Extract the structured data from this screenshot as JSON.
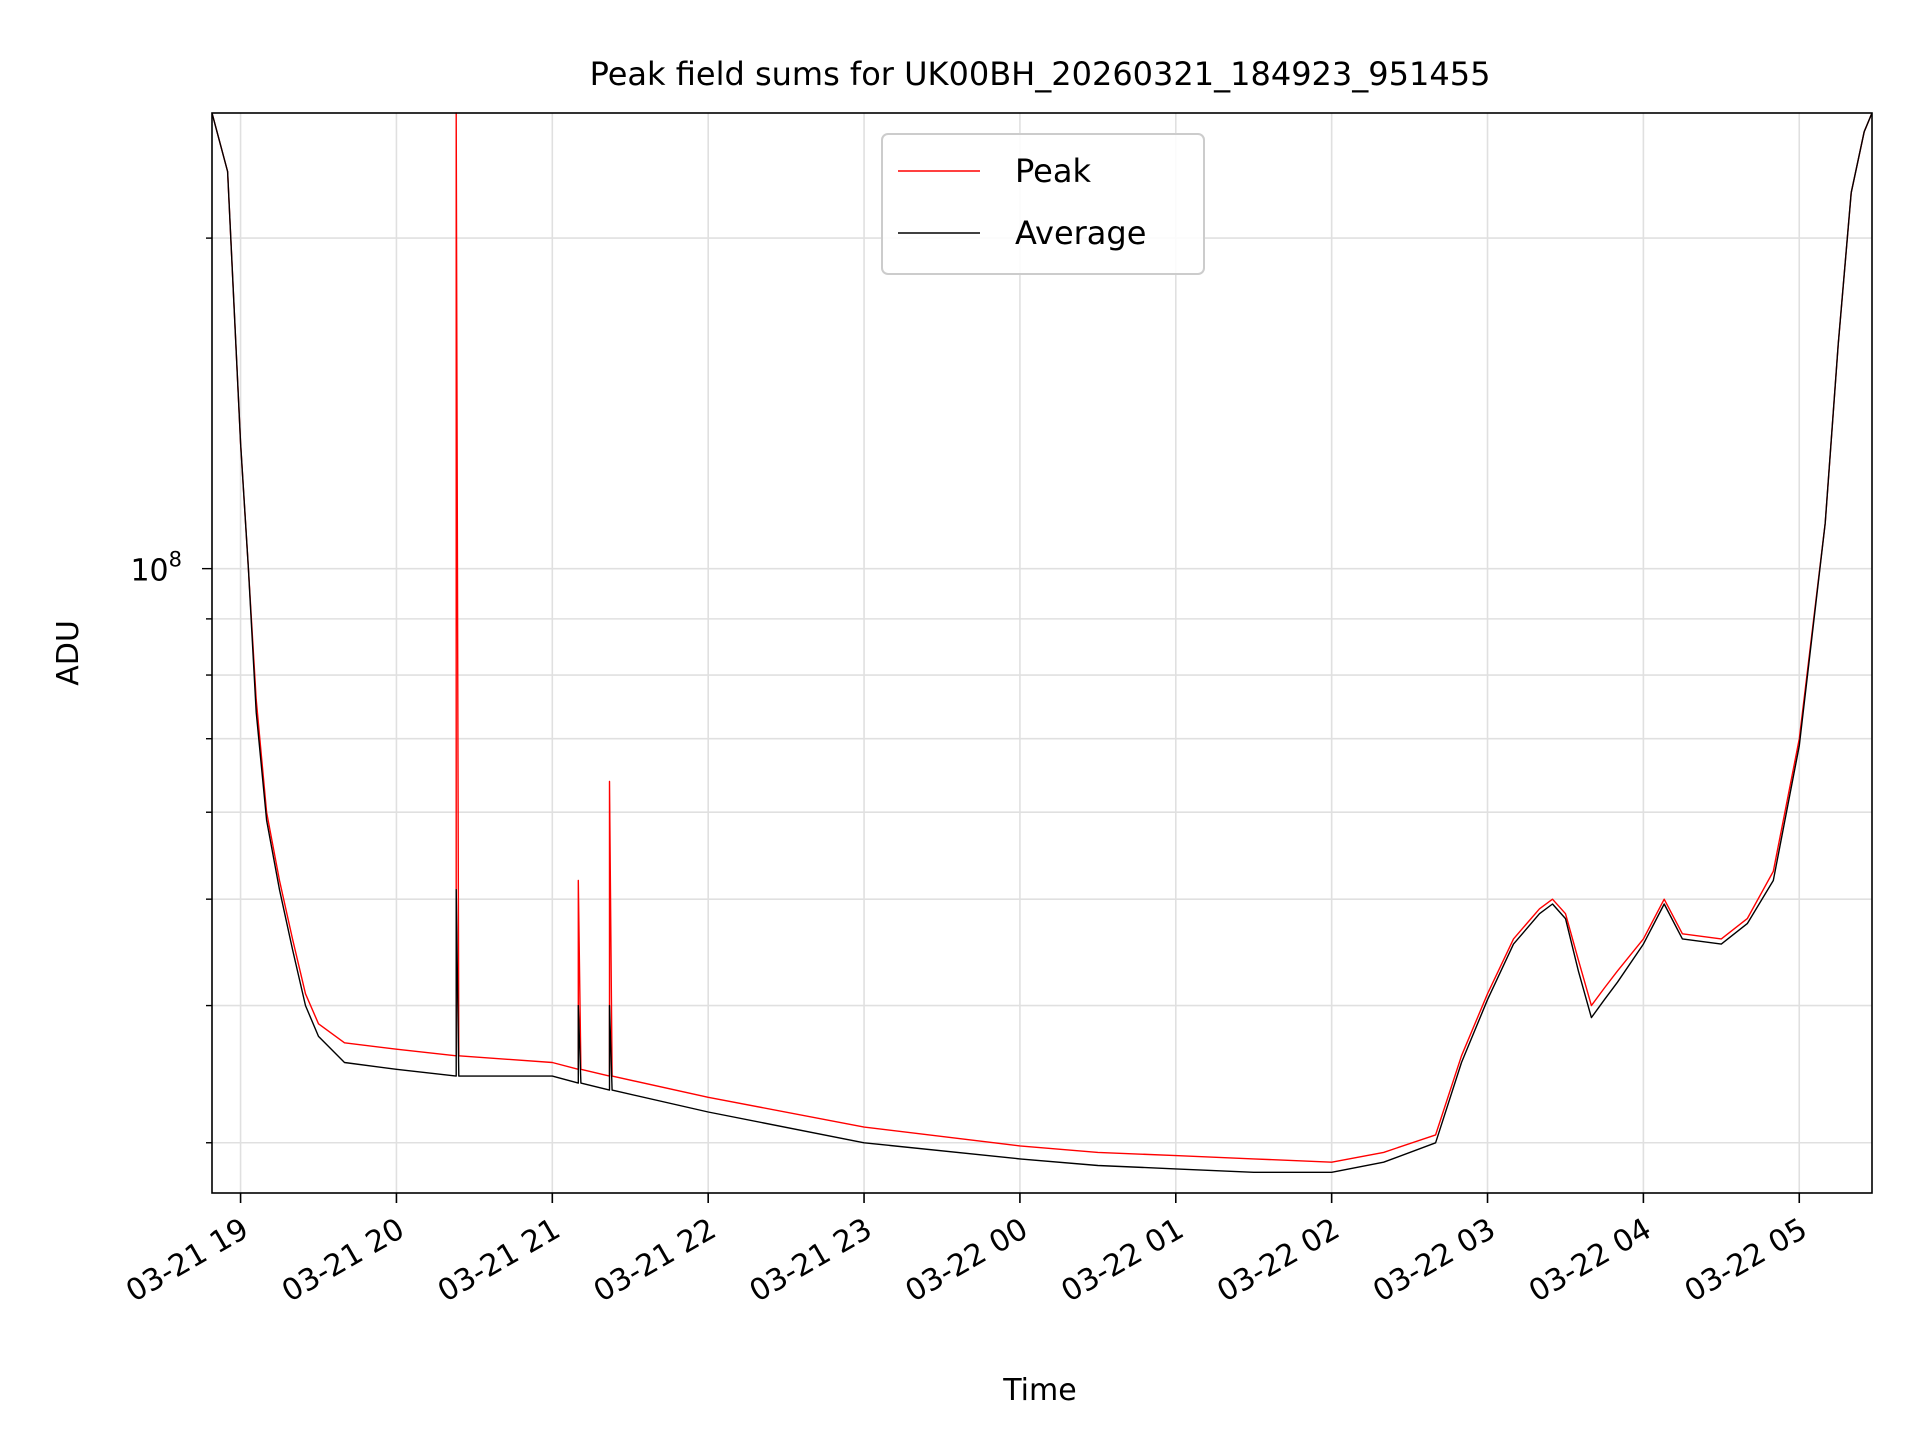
{
  "chart_data": {
    "type": "line",
    "title": "Peak field sums for UK00BH_20260321_184923_951455",
    "xlabel": "Time",
    "ylabel": "ADU",
    "yscale": "log",
    "ylim": [
      27000000.0,
      260000000.0
    ],
    "xlim": [
      "2026-03-21 18:49",
      "2026-03-22 05:28"
    ],
    "grid": true,
    "legend_position": "top-center",
    "x_ticks": [
      {
        "t": "2026-03-21 19:00",
        "label": "03-21 19"
      },
      {
        "t": "2026-03-21 20:00",
        "label": "03-21 20"
      },
      {
        "t": "2026-03-21 21:00",
        "label": "03-21 21"
      },
      {
        "t": "2026-03-21 22:00",
        "label": "03-21 22"
      },
      {
        "t": "2026-03-21 23:00",
        "label": "03-21 23"
      },
      {
        "t": "2026-03-22 00:00",
        "label": "03-22 00"
      },
      {
        "t": "2026-03-22 01:00",
        "label": "03-22 01"
      },
      {
        "t": "2026-03-22 02:00",
        "label": "03-22 02"
      },
      {
        "t": "2026-03-22 03:00",
        "label": "03-22 03"
      },
      {
        "t": "2026-03-22 04:00",
        "label": "03-22 04"
      },
      {
        "t": "2026-03-22 05:00",
        "label": "03-22 05"
      }
    ],
    "y_tick_label": {
      "base": "10",
      "exponent": "8",
      "value": 100000000.0
    },
    "series": [
      {
        "name": "Peak",
        "color": "#ff0000",
        "x": [
          "2026-03-21 18:49",
          "2026-03-21 18:55",
          "2026-03-21 19:00",
          "2026-03-21 19:03",
          "2026-03-21 19:06",
          "2026-03-21 19:10",
          "2026-03-21 19:15",
          "2026-03-21 19:20",
          "2026-03-21 19:25",
          "2026-03-21 19:30",
          "2026-03-21 19:40",
          "2026-03-21 20:00",
          "2026-03-21 20:23",
          "2026-03-21 20:23",
          "2026-03-21 20:24",
          "2026-03-21 21:00",
          "2026-03-21 21:10",
          "2026-03-21 21:10",
          "2026-03-21 21:11",
          "2026-03-21 21:22",
          "2026-03-21 21:22",
          "2026-03-21 21:23",
          "2026-03-21 22:00",
          "2026-03-21 23:00",
          "2026-03-22 00:00",
          "2026-03-22 00:30",
          "2026-03-22 01:00",
          "2026-03-22 01:30",
          "2026-03-22 02:00",
          "2026-03-22 02:20",
          "2026-03-22 02:40",
          "2026-03-22 02:50",
          "2026-03-22 03:00",
          "2026-03-22 03:10",
          "2026-03-22 03:20",
          "2026-03-22 03:25",
          "2026-03-22 03:30",
          "2026-03-22 03:35",
          "2026-03-22 03:40",
          "2026-03-22 03:45",
          "2026-03-22 03:50",
          "2026-03-22 04:00",
          "2026-03-22 04:08",
          "2026-03-22 04:15",
          "2026-03-22 04:30",
          "2026-03-22 04:40",
          "2026-03-22 04:50",
          "2026-03-22 05:00",
          "2026-03-22 05:10",
          "2026-03-22 05:15",
          "2026-03-22 05:20",
          "2026-03-22 05:25",
          "2026-03-22 05:28"
        ],
        "values": [
          260000000.0,
          230000000.0,
          130000000.0,
          100000000.0,
          76000000.0,
          60000000.0,
          52000000.0,
          46000000.0,
          41000000.0,
          38500000.0,
          37000000.0,
          36500000.0,
          36000000.0,
          260000000.0,
          36000000.0,
          35500000.0,
          35000000.0,
          52000000.0,
          35000000.0,
          34500000.0,
          64000000.0,
          34500000.0,
          33000000.0,
          31000000.0,
          29800000.0,
          29400000.0,
          29200000.0,
          29000000.0,
          28800000.0,
          29400000.0,
          30500000.0,
          36000000.0,
          41000000.0,
          46000000.0,
          49000000.0,
          50000000.0,
          48500000.0,
          44000000.0,
          40000000.0,
          41500000.0,
          43000000.0,
          46000000.0,
          50000000.0,
          46500000.0,
          46000000.0,
          48000000.0,
          53000000.0,
          70000000.0,
          110000000.0,
          160000000.0,
          220000000.0,
          250000000.0,
          260000000.0
        ]
      },
      {
        "name": "Average",
        "color": "#000000",
        "x": [
          "2026-03-21 18:49",
          "2026-03-21 18:55",
          "2026-03-21 19:00",
          "2026-03-21 19:03",
          "2026-03-21 19:06",
          "2026-03-21 19:10",
          "2026-03-21 19:15",
          "2026-03-21 19:20",
          "2026-03-21 19:25",
          "2026-03-21 19:30",
          "2026-03-21 19:40",
          "2026-03-21 20:00",
          "2026-03-21 20:23",
          "2026-03-21 20:23",
          "2026-03-21 20:24",
          "2026-03-21 21:00",
          "2026-03-21 21:10",
          "2026-03-21 21:10",
          "2026-03-21 21:11",
          "2026-03-21 21:22",
          "2026-03-21 21:22",
          "2026-03-21 21:23",
          "2026-03-21 22:00",
          "2026-03-21 23:00",
          "2026-03-22 00:00",
          "2026-03-22 00:30",
          "2026-03-22 01:00",
          "2026-03-22 01:30",
          "2026-03-22 02:00",
          "2026-03-22 02:20",
          "2026-03-22 02:40",
          "2026-03-22 02:50",
          "2026-03-22 03:00",
          "2026-03-22 03:10",
          "2026-03-22 03:20",
          "2026-03-22 03:25",
          "2026-03-22 03:30",
          "2026-03-22 03:35",
          "2026-03-22 03:40",
          "2026-03-22 03:45",
          "2026-03-22 03:50",
          "2026-03-22 04:00",
          "2026-03-22 04:08",
          "2026-03-22 04:15",
          "2026-03-22 04:30",
          "2026-03-22 04:40",
          "2026-03-22 04:50",
          "2026-03-22 05:00",
          "2026-03-22 05:10",
          "2026-03-22 05:15",
          "2026-03-22 05:20",
          "2026-03-22 05:25",
          "2026-03-22 05:28"
        ],
        "values": [
          260000000.0,
          230000000.0,
          130000000.0,
          100000000.0,
          74000000.0,
          59000000.0,
          51000000.0,
          45000000.0,
          40000000.0,
          37500000.0,
          35500000.0,
          35000000.0,
          34500000.0,
          51000000.0,
          34500000.0,
          34500000.0,
          34000000.0,
          40000000.0,
          34000000.0,
          33500000.0,
          40000000.0,
          33500000.0,
          32000000.0,
          30000000.0,
          29000000.0,
          28600000.0,
          28400000.0,
          28200000.0,
          28200000.0,
          28800000.0,
          30000000.0,
          35500000.0,
          40500000.0,
          45500000.0,
          48500000.0,
          49500000.0,
          48000000.0,
          43000000.0,
          39000000.0,
          40500000.0,
          42000000.0,
          45500000.0,
          49500000.0,
          46000000.0,
          45500000.0,
          47500000.0,
          52000000.0,
          69000000.0,
          110000000.0,
          160000000.0,
          220000000.0,
          250000000.0,
          260000000.0
        ]
      }
    ]
  }
}
